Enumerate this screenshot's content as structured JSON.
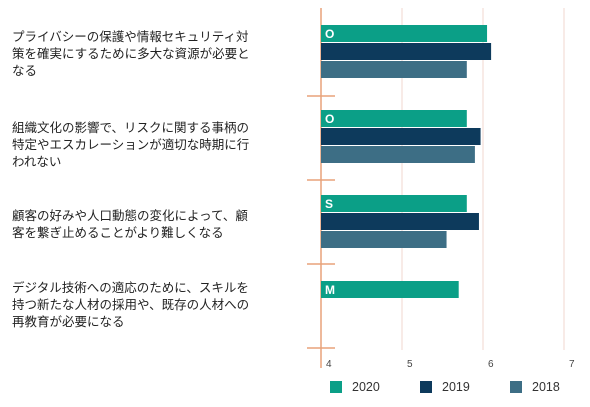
{
  "chart_data": {
    "type": "bar",
    "orientation": "horizontal",
    "categories": [
      "プライバシーの保護や情報セキュリティ対策を確実にするために多大な資源が必要となる",
      "組織文化の影響で、リスクに関する事柄の特定やエスカレーションが適切な時期に行われない",
      "顧客の好みや人口動態の変化によって、顧客を繋ぎ止めることがより難しくなる",
      "デジタル技術への適応のために、スキルを持つ新たな人材の採用や、既存の人材への再教育が必要になる"
    ],
    "category_lines": [
      [
        "プライバシーの保護や情報セキュリティ対",
        "策を確実にするために多大な資源が必要と",
        "なる"
      ],
      [
        "組織文化の影響で、リスクに関する事柄の",
        "特定やエスカレーションが適切な時期に行",
        "われない"
      ],
      [
        "顧客の好みや人口動態の変化によって、顧",
        "客を繋ぎ止めることがより難しくなる"
      ],
      [
        "デジタル技術への適応のために、スキルを",
        "持つ新たな人材の採用や、既存の人材への",
        "再教育が必要になる"
      ]
    ],
    "bar_tags": [
      "O",
      "O",
      "S",
      "M"
    ],
    "series": [
      {
        "name": "2020",
        "color": "#0b9f87",
        "values": [
          6.05,
          5.8,
          5.8,
          5.7
        ]
      },
      {
        "name": "2019",
        "color": "#0d3a5c",
        "values": [
          6.1,
          5.97,
          5.95,
          null
        ]
      },
      {
        "name": "2018",
        "color": "#3d6e85",
        "values": [
          5.8,
          5.9,
          5.55,
          null
        ]
      }
    ],
    "x_ticks": [
      "4",
      "5",
      "6",
      "7"
    ],
    "xlim": [
      4,
      7
    ],
    "grid": "vertical",
    "legend_position": "bottom"
  }
}
